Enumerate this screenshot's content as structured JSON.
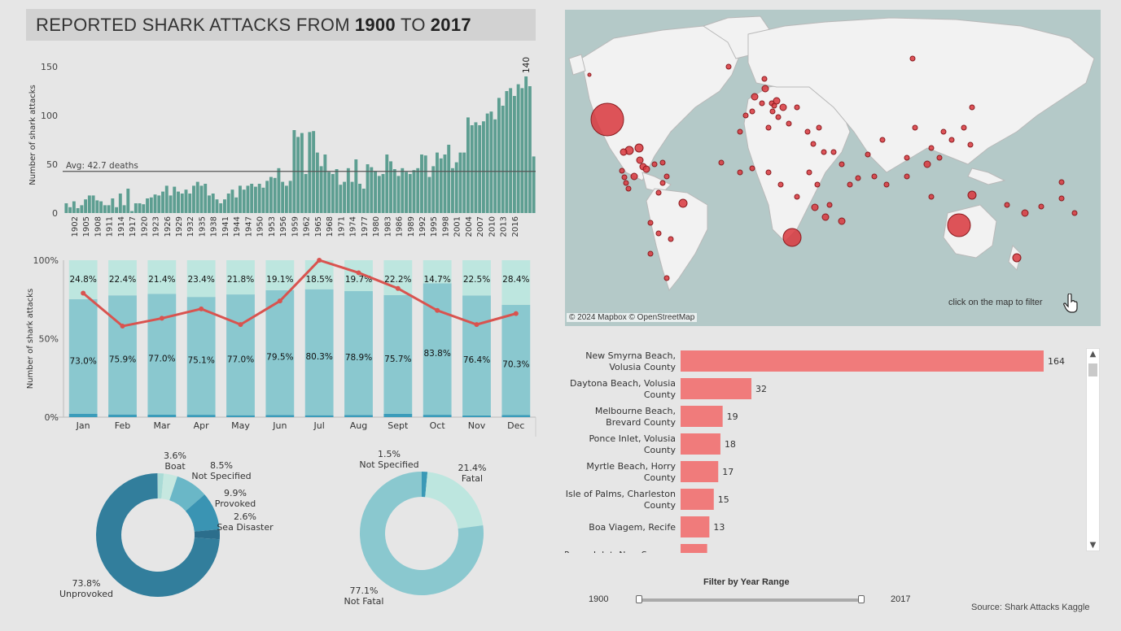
{
  "title": {
    "prefix": "REPORTED SHARK ATTACKS FROM",
    "year_from": "1900",
    "mid": "TO",
    "year_to": "2017"
  },
  "chart_data": [
    {
      "type": "bar",
      "ylabel": "Number of shark attacks",
      "ylim": [
        0,
        160
      ],
      "yticks": [
        0,
        50,
        100,
        150
      ],
      "color": "#5d9e91",
      "x_tick_labels": [
        "1902",
        "1905",
        "1908",
        "1911",
        "1914",
        "1917",
        "1920",
        "1923",
        "1926",
        "1929",
        "1932",
        "1935",
        "1938",
        "1941",
        "1944",
        "1947",
        "1950",
        "1953",
        "1956",
        "1959",
        "1962",
        "1965",
        "1968",
        "1971",
        "1974",
        "1977",
        "1980",
        "1983",
        "1986",
        "1989",
        "1992",
        "1995",
        "1998",
        "2001",
        "2004",
        "2007",
        "2010",
        "2013",
        "2016"
      ],
      "year_start": 1900,
      "values": [
        10,
        6,
        12,
        5,
        8,
        14,
        18,
        18,
        13,
        12,
        8,
        8,
        15,
        6,
        20,
        8,
        25,
        2,
        10,
        10,
        9,
        15,
        16,
        19,
        18,
        22,
        28,
        18,
        27,
        22,
        20,
        24,
        20,
        28,
        32,
        28,
        30,
        18,
        20,
        14,
        10,
        14,
        20,
        24,
        16,
        28,
        24,
        28,
        30,
        27,
        30,
        26,
        33,
        37,
        36,
        46,
        32,
        28,
        33,
        85,
        78,
        82,
        40,
        83,
        84,
        62,
        48,
        60,
        42,
        40,
        45,
        29,
        32,
        46,
        32,
        55,
        30,
        25,
        50,
        47,
        43,
        38,
        40,
        60,
        53,
        45,
        38,
        46,
        42,
        40,
        44,
        46,
        60,
        59,
        37,
        48,
        62,
        56,
        60,
        70,
        46,
        52,
        62,
        62,
        98,
        90,
        93,
        90,
        94,
        102,
        104,
        96,
        118,
        110,
        125,
        128,
        120,
        132,
        128,
        140,
        130,
        58
      ],
      "average": {
        "label": "Avg: 42.7 deaths",
        "value": 42.7
      },
      "peak_label": "140"
    },
    {
      "type": "bar",
      "stacked": true,
      "ylabel": "Number of shark attacks",
      "yticks": [
        "0%",
        "50%",
        "100%"
      ],
      "categories": [
        "Jan",
        "Feb",
        "Mar",
        "Apr",
        "May",
        "Jun",
        "Jul",
        "Aug",
        "Sept",
        "Oct",
        "Nov",
        "Dec"
      ],
      "series": [
        {
          "values": [
            2.2,
            1.7,
            1.6,
            1.5,
            1.2,
            1.4,
            1.2,
            1.4,
            2.1,
            1.5,
            1.1,
            1.3
          ],
          "color": "#3b9cba"
        },
        {
          "values": [
            73.0,
            75.9,
            77.0,
            75.1,
            77.0,
            79.5,
            80.3,
            78.9,
            75.7,
            83.8,
            76.4,
            70.3
          ],
          "labels": [
            "73.0%",
            "75.9%",
            "77.0%",
            "75.1%",
            "77.0%",
            "79.5%",
            "80.3%",
            "78.9%",
            "75.7%",
            "83.8%",
            "76.4%",
            "70.3%"
          ],
          "color": "#8ac8cf"
        },
        {
          "values": [
            24.8,
            22.4,
            21.4,
            23.4,
            21.8,
            19.1,
            18.5,
            19.7,
            22.2,
            14.7,
            22.5,
            28.4
          ],
          "labels": [
            "24.8%",
            "22.4%",
            "21.4%",
            "23.4%",
            "21.8%",
            "19.1%",
            "18.5%",
            "19.7%",
            "22.2%",
            "14.7%",
            "22.5%",
            "28.4%"
          ],
          "color": "#bde6df"
        }
      ],
      "line": {
        "color": "#d9534f",
        "values": [
          79,
          58,
          63,
          69,
          59,
          74,
          100,
          92,
          82,
          68,
          59,
          66
        ]
      }
    },
    {
      "type": "pie",
      "donut": true,
      "slices": [
        {
          "label": "Boat",
          "percent_label": "3.6%",
          "value": 3.6,
          "color": "#c6e8e0"
        },
        {
          "label": "Not Specified",
          "percent_label": "8.5%",
          "value": 8.5,
          "color": "#6ab7c7"
        },
        {
          "label": "Provoked",
          "percent_label": "9.9%",
          "value": 9.9,
          "color": "#3a94b3"
        },
        {
          "label": "Sea Disaster",
          "percent_label": "2.6%",
          "value": 2.6,
          "color": "#2c6e8c"
        },
        {
          "label": "Unprovoked",
          "percent_label": "73.8%",
          "value": 73.8,
          "color": "#327e9c"
        }
      ],
      "slice_start_offset": 1.5,
      "slice_first_value": 1.5,
      "slice_first_color": "#a9dbd6"
    },
    {
      "type": "pie",
      "donut": true,
      "slices": [
        {
          "label": "Not Specified",
          "percent_label": "1.5%",
          "value": 1.5,
          "color": "#3a99b6"
        },
        {
          "label": "Fatal",
          "percent_label": "21.4%",
          "value": 21.4,
          "color": "#bde6df"
        },
        {
          "label": "Not Fatal",
          "percent_label": "77.1%",
          "value": 77.1,
          "color": "#8ac8cf"
        }
      ]
    },
    {
      "type": "bar",
      "orientation": "horizontal",
      "color": "#f07b7b",
      "categories": [
        [
          "New Smyrna Beach,",
          "Volusia County"
        ],
        [
          "Daytona Beach, Volusia",
          "County"
        ],
        [
          "Melbourne Beach,",
          "Brevard County"
        ],
        [
          "Ponce Inlet, Volusia",
          "County"
        ],
        [
          "Myrtle Beach, Horry",
          "County"
        ],
        [
          "Isle of Palms, Charleston",
          "County"
        ],
        [
          "Boa Viagem, Recife"
        ],
        [
          "Ponce Inlet, New Smyrna"
        ]
      ],
      "values": [
        164,
        32,
        19,
        18,
        17,
        15,
        13,
        12
      ],
      "value_labels": [
        "164",
        "32",
        "19",
        "18",
        "17",
        "15",
        "13",
        ""
      ]
    }
  ],
  "map": {
    "hint": "click on the map to filter",
    "credit": "© 2024 Mapbox © OpenStreetMap",
    "water_color": "#b4c9c8",
    "land_color": "#f2f2f2",
    "point_color": "#d9373d",
    "pointer_icon": "hand-pointer-icon"
  },
  "filter": {
    "title": "Filter by Year Range",
    "min": "1900",
    "max": "2017"
  },
  "source": "Source: Shark Attacks Kaggle"
}
